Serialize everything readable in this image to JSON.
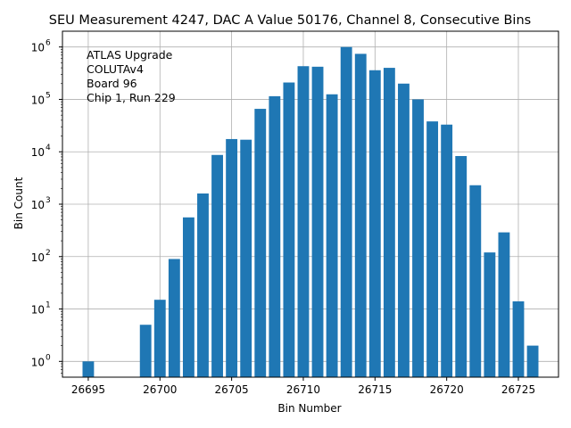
{
  "chart_data": {
    "type": "bar",
    "title": "SEU Measurement 4247, DAC A Value 50176, Channel 8, Consecutive Bins",
    "xlabel": "Bin Number",
    "ylabel": "Bin Count",
    "yscale": "log",
    "xlim": [
      26693.2,
      26727.8
    ],
    "ylim": [
      0.5,
      2000000
    ],
    "grid": true,
    "bar_color": "#1f77b4",
    "x_ticks": [
      26695,
      26700,
      26705,
      26710,
      26715,
      26720,
      26725
    ],
    "y_ticks": [
      {
        "value": 1,
        "base": "10",
        "exp": "0"
      },
      {
        "value": 10,
        "base": "10",
        "exp": "1"
      },
      {
        "value": 100,
        "base": "10",
        "exp": "2"
      },
      {
        "value": 1000,
        "base": "10",
        "exp": "3"
      },
      {
        "value": 10000,
        "base": "10",
        "exp": "4"
      },
      {
        "value": 100000,
        "base": "10",
        "exp": "5"
      },
      {
        "value": 1000000,
        "base": "10",
        "exp": "6"
      }
    ],
    "x": [
      26695,
      26699,
      26700,
      26701,
      26702,
      26703,
      26704,
      26705,
      26706,
      26707,
      26708,
      26709,
      26710,
      26711,
      26712,
      26713,
      26714,
      26715,
      26716,
      26717,
      26718,
      26719,
      26720,
      26721,
      26722,
      26723,
      26724,
      26725,
      26726
    ],
    "values": [
      1,
      5,
      15,
      90,
      560,
      1600,
      8700,
      17500,
      17000,
      66000,
      115000,
      210000,
      430000,
      420000,
      125000,
      1000000,
      740000,
      360000,
      400000,
      200000,
      100000,
      38000,
      33000,
      8300,
      2300,
      120,
      290,
      14,
      2
    ],
    "annotation": [
      "ATLAS Upgrade",
      "COLUTAv4",
      " Board 96",
      "Chip 1, Run 229"
    ]
  }
}
